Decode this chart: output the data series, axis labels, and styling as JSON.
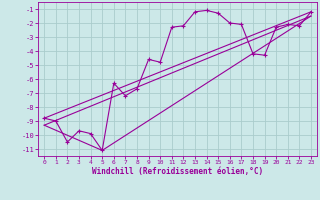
{
  "xlabel": "Windchill (Refroidissement éolien,°C)",
  "bg_color": "#cce8e8",
  "grid_color": "#aacccc",
  "line_color": "#990099",
  "xlim": [
    -0.5,
    23.5
  ],
  "ylim": [
    -11.5,
    -0.5
  ],
  "yticks": [
    -11,
    -10,
    -9,
    -8,
    -7,
    -6,
    -5,
    -4,
    -3,
    -2,
    -1
  ],
  "xticks": [
    0,
    1,
    2,
    3,
    4,
    5,
    6,
    7,
    8,
    9,
    10,
    11,
    12,
    13,
    14,
    15,
    16,
    17,
    18,
    19,
    20,
    21,
    22,
    23
  ],
  "line1_x": [
    0,
    1,
    2,
    3,
    4,
    5,
    6,
    7,
    8,
    9,
    10,
    11,
    12,
    13,
    14,
    15,
    16,
    17,
    18,
    19,
    20,
    21,
    22,
    23
  ],
  "line1_y": [
    -8.8,
    -9.0,
    -10.5,
    -9.7,
    -9.9,
    -11.1,
    -6.3,
    -7.2,
    -6.7,
    -4.6,
    -4.8,
    -2.3,
    -2.2,
    -1.2,
    -1.1,
    -1.3,
    -2.0,
    -2.1,
    -4.2,
    -4.3,
    -2.3,
    -2.1,
    -2.2,
    -1.2
  ],
  "line2_x": [
    0,
    23
  ],
  "line2_y": [
    -8.8,
    -1.2
  ],
  "line3_x": [
    0,
    23
  ],
  "line3_y": [
    -9.3,
    -1.5
  ],
  "line4_x": [
    0,
    5,
    23
  ],
  "line4_y": [
    -9.3,
    -11.1,
    -1.5
  ]
}
